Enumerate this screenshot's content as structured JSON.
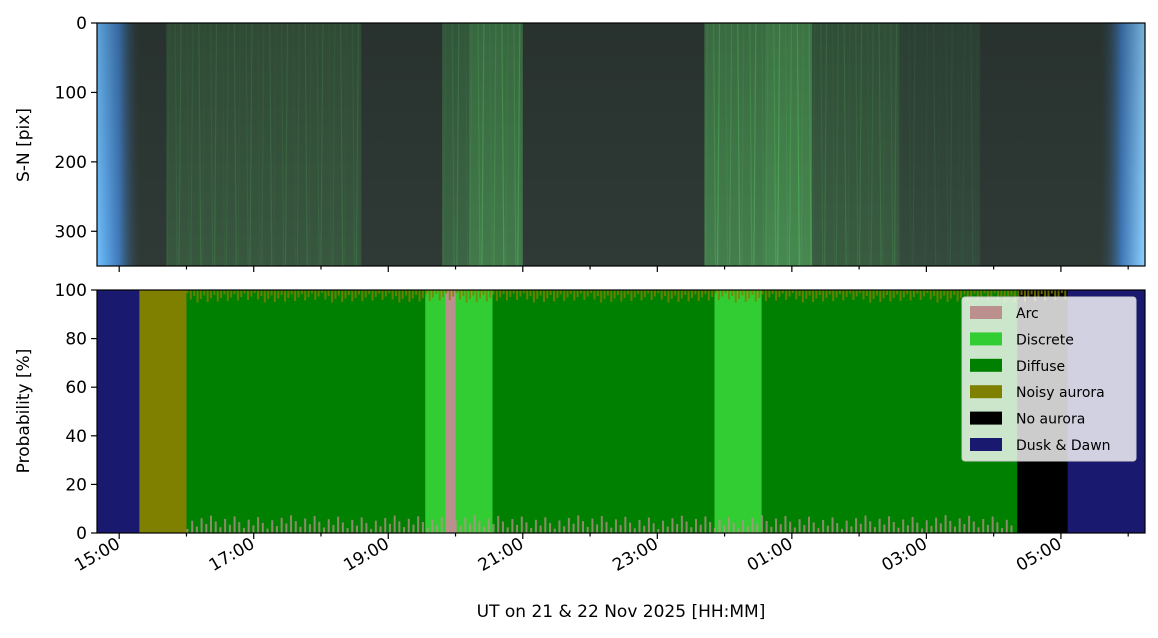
{
  "chart_data": [
    {
      "type": "heatmap",
      "ylabel": "S-N [pix]",
      "ylim": [
        350,
        0
      ],
      "yticks": [
        0,
        100,
        200,
        300
      ],
      "x_range_hours": [
        14.67,
        30.25
      ],
      "description_colors": {
        "edge": "#5ab4f5",
        "background": "#2f3a36",
        "aurora": "#5fd66a"
      },
      "aurora_bands": [
        {
          "start": 15.7,
          "end": 18.6,
          "intensity": 0.35
        },
        {
          "start": 19.8,
          "end": 20.2,
          "intensity": 0.5
        },
        {
          "start": 20.2,
          "end": 21.0,
          "intensity": 0.75
        },
        {
          "start": 23.7,
          "end": 24.6,
          "intensity": 0.8
        },
        {
          "start": 24.6,
          "end": 25.3,
          "intensity": 0.9
        },
        {
          "start": 25.3,
          "end": 26.6,
          "intensity": 0.4
        },
        {
          "start": 26.6,
          "end": 27.8,
          "intensity": 0.2
        }
      ]
    },
    {
      "type": "area",
      "stacked": true,
      "xlabel": "UT on 21 & 22 Nov 2025 [HH:MM]",
      "ylabel": "Probability [%]",
      "ylim": [
        0,
        100
      ],
      "yticks": [
        0,
        20,
        40,
        60,
        80,
        100
      ],
      "xlim_hours": [
        14.67,
        30.25
      ],
      "xtick_hours": [
        15,
        17,
        19,
        21,
        23,
        25,
        27,
        29
      ],
      "xtick_labels": [
        "15:00",
        "17:00",
        "19:00",
        "21:00",
        "23:00",
        "01:00",
        "03:00",
        "05:00"
      ],
      "legend_position": "upper-right",
      "series": [
        {
          "name": "Arc",
          "color": "#bc8f8f"
        },
        {
          "name": "Discrete",
          "color": "#32cd32"
        },
        {
          "name": "Diffuse",
          "color": "#008000"
        },
        {
          "name": "Noisy aurora",
          "color": "#808000"
        },
        {
          "name": "No aurora",
          "color": "#000000"
        },
        {
          "name": "Dusk & Dawn",
          "color": "#191970"
        }
      ],
      "segments": [
        {
          "start": 14.67,
          "end": 15.3,
          "class": "Dusk & Dawn"
        },
        {
          "start": 15.3,
          "end": 15.75,
          "class": "Noisy aurora"
        },
        {
          "start": 15.75,
          "end": 16.0,
          "class": "Noisy aurora"
        },
        {
          "start": 16.0,
          "end": 19.55,
          "class": "Diffuse"
        },
        {
          "start": 19.55,
          "end": 19.85,
          "class": "Discrete"
        },
        {
          "start": 19.85,
          "end": 20.0,
          "class": "Arc"
        },
        {
          "start": 20.0,
          "end": 20.55,
          "class": "Discrete"
        },
        {
          "start": 20.55,
          "end": 23.85,
          "class": "Diffuse"
        },
        {
          "start": 23.85,
          "end": 24.55,
          "class": "Discrete"
        },
        {
          "start": 24.55,
          "end": 28.35,
          "class": "Diffuse"
        },
        {
          "start": 28.35,
          "end": 29.1,
          "class": "No aurora"
        },
        {
          "start": 29.1,
          "end": 30.25,
          "class": "Dusk & Dawn"
        }
      ]
    }
  ]
}
